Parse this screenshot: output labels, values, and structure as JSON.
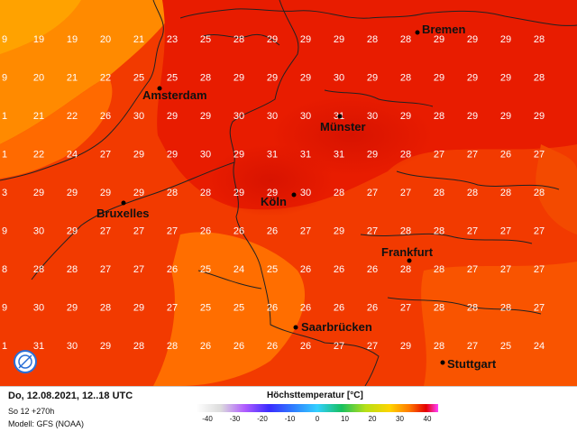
{
  "footer": {
    "valid_time": "Do, 12.08.2021, 12..18 UTC",
    "run": "So 12 +270h",
    "model": "Modell: GFS (NOAA)"
  },
  "legend": {
    "title": "Höchsttemperatur [°C]",
    "ticks": [
      "-40",
      "-30",
      "-20",
      "-10",
      "0",
      "10",
      "20",
      "30",
      "40"
    ]
  },
  "cities": [
    {
      "name": "Bremen"
    },
    {
      "name": "Amsterdam"
    },
    {
      "name": "Münster"
    },
    {
      "name": "Bruxelles"
    },
    {
      "name": "Köln"
    },
    {
      "name": "Frankfurt"
    },
    {
      "name": "Saarbrücken"
    },
    {
      "name": "Stuttgart"
    }
  ],
  "grid_values": [
    [
      "9",
      "19",
      "19",
      "20",
      "21",
      "23",
      "25",
      "28",
      "29",
      "29",
      "29",
      "28",
      "28",
      "29",
      "29",
      "29",
      "28"
    ],
    [
      "9",
      "20",
      "21",
      "22",
      "25",
      "25",
      "28",
      "29",
      "29",
      "29",
      "30",
      "29",
      "28",
      "29",
      "29",
      "29",
      "28"
    ],
    [
      "1",
      "21",
      "22",
      "26",
      "30",
      "29",
      "29",
      "30",
      "30",
      "30",
      "31",
      "30",
      "29",
      "28",
      "29",
      "29",
      "29"
    ],
    [
      "1",
      "22",
      "24",
      "27",
      "29",
      "29",
      "30",
      "29",
      "31",
      "31",
      "31",
      "29",
      "28",
      "27",
      "27",
      "26",
      "27"
    ],
    [
      "3",
      "29",
      "29",
      "29",
      "29",
      "28",
      "28",
      "29",
      "29",
      "30",
      "28",
      "27",
      "27",
      "28",
      "28",
      "28",
      "28"
    ],
    [
      "9",
      "30",
      "29",
      "27",
      "27",
      "27",
      "26",
      "26",
      "26",
      "27",
      "29",
      "27",
      "28",
      "28",
      "27",
      "27",
      "27"
    ],
    [
      "8",
      "28",
      "28",
      "27",
      "27",
      "26",
      "25",
      "24",
      "25",
      "26",
      "26",
      "26",
      "28",
      "28",
      "27",
      "27",
      "27"
    ],
    [
      "9",
      "30",
      "29",
      "28",
      "29",
      "27",
      "25",
      "25",
      "26",
      "26",
      "26",
      "26",
      "27",
      "28",
      "28",
      "28",
      "27"
    ],
    [
      "1",
      "31",
      "30",
      "29",
      "28",
      "28",
      "26",
      "26",
      "26",
      "26",
      "27",
      "27",
      "29",
      "28",
      "27",
      "25",
      "24"
    ]
  ]
}
